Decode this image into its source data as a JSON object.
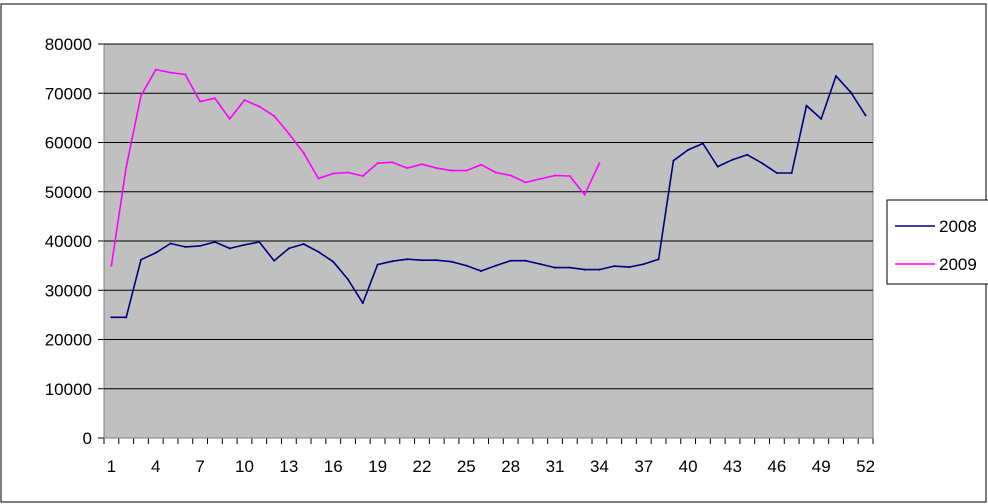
{
  "chart_data": {
    "type": "line",
    "title": "",
    "xlabel": "",
    "ylabel": "",
    "ylim": [
      0,
      80000
    ],
    "y_ticks": [
      0,
      10000,
      20000,
      30000,
      40000,
      50000,
      60000,
      70000,
      80000
    ],
    "x_ticks": [
      1,
      4,
      7,
      10,
      13,
      16,
      19,
      22,
      25,
      28,
      31,
      34,
      37,
      40,
      43,
      46,
      49,
      52
    ],
    "x_range": [
      1,
      52
    ],
    "grid": "horizontal",
    "legend": "right",
    "plot_background": "#c0c0c0",
    "series": [
      {
        "name": "2008",
        "color": "#000080",
        "x": [
          1,
          2,
          3,
          4,
          5,
          6,
          7,
          8,
          9,
          10,
          11,
          12,
          13,
          14,
          15,
          16,
          17,
          18,
          19,
          20,
          21,
          22,
          23,
          24,
          25,
          26,
          27,
          28,
          29,
          30,
          31,
          32,
          33,
          34,
          35,
          36,
          37,
          38,
          39,
          40,
          41,
          42,
          43,
          44,
          45,
          46,
          47,
          48,
          49,
          50,
          51,
          52
        ],
        "values": [
          24500,
          24500,
          36200,
          37600,
          39500,
          38800,
          39000,
          39800,
          38500,
          39200,
          39800,
          36000,
          38500,
          39400,
          37800,
          35800,
          32200,
          27400,
          35200,
          35900,
          36300,
          36100,
          36100,
          35800,
          35000,
          33900,
          35000,
          36000,
          36000,
          35300,
          34600,
          34600,
          34200,
          34200,
          34900,
          34700,
          35300,
          36300,
          56300,
          58500,
          59800,
          55100,
          56500,
          57500,
          55800,
          53800,
          53800,
          67500,
          64800,
          73500,
          70200,
          65500
        ]
      },
      {
        "name": "2009",
        "color": "#ff00ff",
        "x": [
          1,
          2,
          3,
          4,
          5,
          6,
          7,
          8,
          9,
          10,
          11,
          12,
          13,
          14,
          15,
          16,
          17,
          18,
          19,
          20,
          21,
          22,
          23,
          24,
          25,
          26,
          27,
          28,
          29,
          30,
          31,
          32,
          33,
          34
        ],
        "values": [
          35000,
          55000,
          69500,
          74800,
          74200,
          73800,
          68300,
          69000,
          64800,
          68600,
          67300,
          65400,
          61800,
          57900,
          52700,
          53700,
          53900,
          53200,
          55800,
          56000,
          54800,
          55600,
          54800,
          54300,
          54300,
          55500,
          53900,
          53300,
          51900,
          52600,
          53300,
          53200,
          49400,
          55800
        ]
      }
    ]
  }
}
